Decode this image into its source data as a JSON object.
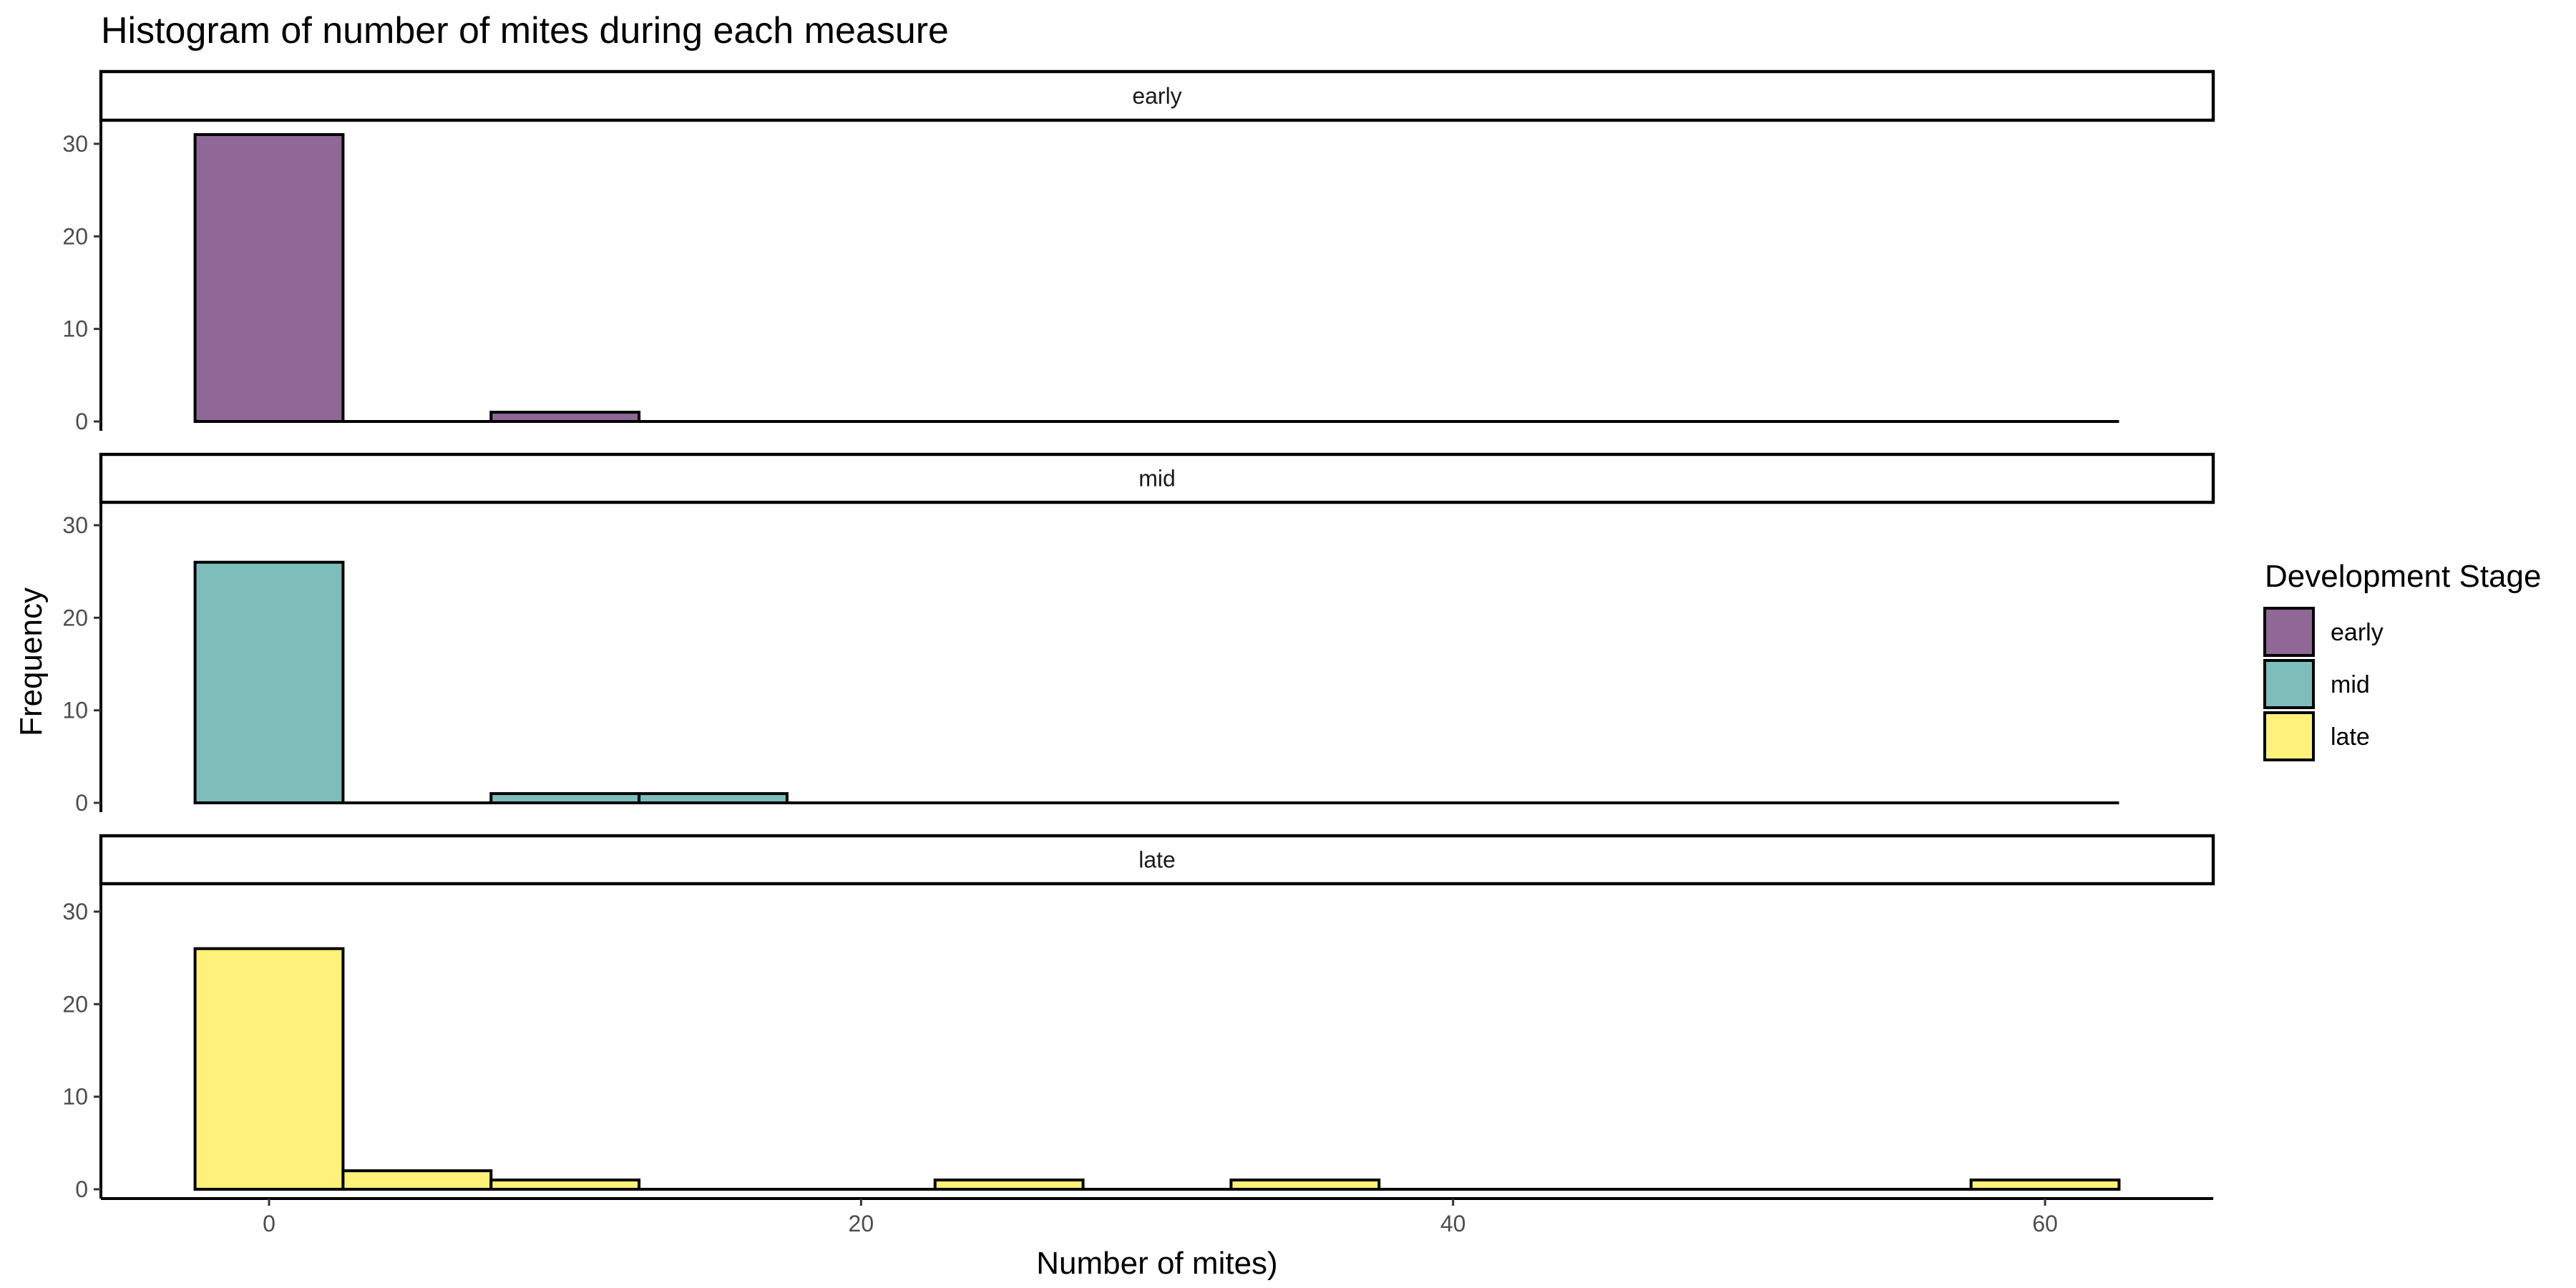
{
  "chart_data": {
    "type": "bar",
    "title": "Histogram of number of mites during each measure",
    "xlabel": "Number of mites)",
    "ylabel": "Frequency",
    "xlim": [
      -7,
      65
    ],
    "ylim": [
      0,
      32.5
    ],
    "x_ticks": [
      0,
      20,
      40,
      60
    ],
    "y_ticks": [
      0,
      10,
      20,
      30
    ],
    "bin_width": 5,
    "grid": false,
    "legend": {
      "title": "Development Stage",
      "position": "right",
      "entries": [
        {
          "label": "early",
          "color": "#8f6897"
        },
        {
          "label": "mid",
          "color": "#7dbdba"
        },
        {
          "label": "late",
          "color": "#fff17a"
        }
      ]
    },
    "panels": [
      {
        "strip": "early",
        "color": "#8f6897",
        "bin_centers": [
          0,
          5,
          10,
          15,
          20,
          25,
          30,
          35,
          40,
          45,
          50,
          55,
          60
        ],
        "counts": [
          31,
          0,
          1,
          0,
          0,
          0,
          0,
          0,
          0,
          0,
          0,
          0,
          0
        ]
      },
      {
        "strip": "mid",
        "color": "#7dbdba",
        "bin_centers": [
          0,
          5,
          10,
          15,
          20,
          25,
          30,
          35,
          40,
          45,
          50,
          55,
          60
        ],
        "counts": [
          26,
          0,
          1,
          1,
          0,
          0,
          0,
          0,
          0,
          0,
          0,
          0,
          0
        ]
      },
      {
        "strip": "late",
        "color": "#fff17a",
        "bin_centers": [
          0,
          5,
          10,
          15,
          20,
          25,
          30,
          35,
          40,
          45,
          50,
          55,
          60
        ],
        "counts": [
          26,
          2,
          1,
          0,
          0,
          1,
          0,
          1,
          0,
          0,
          0,
          0,
          1
        ]
      }
    ]
  }
}
